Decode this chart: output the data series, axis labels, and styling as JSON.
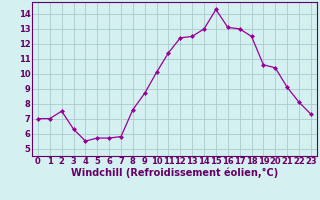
{
  "x": [
    0,
    1,
    2,
    3,
    4,
    5,
    6,
    7,
    8,
    9,
    10,
    11,
    12,
    13,
    14,
    15,
    16,
    17,
    18,
    19,
    20,
    21,
    22,
    23
  ],
  "y": [
    7.0,
    7.0,
    7.5,
    6.3,
    5.5,
    5.7,
    5.7,
    5.8,
    7.6,
    8.7,
    10.1,
    11.4,
    12.4,
    12.5,
    13.0,
    14.3,
    13.1,
    13.0,
    12.5,
    10.6,
    10.4,
    9.1,
    8.1,
    7.3
  ],
  "line_color": "#990099",
  "marker": "D",
  "marker_size": 2.0,
  "bg_color": "#d4f0f0",
  "grid_color": "#aacccc",
  "xlabel": "Windchill (Refroidissement éolien,°C)",
  "xlim": [
    -0.5,
    23.5
  ],
  "ylim": [
    4.5,
    14.8
  ],
  "yticks": [
    5,
    6,
    7,
    8,
    9,
    10,
    11,
    12,
    13,
    14
  ],
  "xticks": [
    0,
    1,
    2,
    3,
    4,
    5,
    6,
    7,
    8,
    9,
    10,
    11,
    12,
    13,
    14,
    15,
    16,
    17,
    18,
    19,
    20,
    21,
    22,
    23
  ],
  "tick_label_fontsize": 6.0,
  "xlabel_fontsize": 7.0,
  "spine_color": "#660066",
  "linewidth": 0.9
}
